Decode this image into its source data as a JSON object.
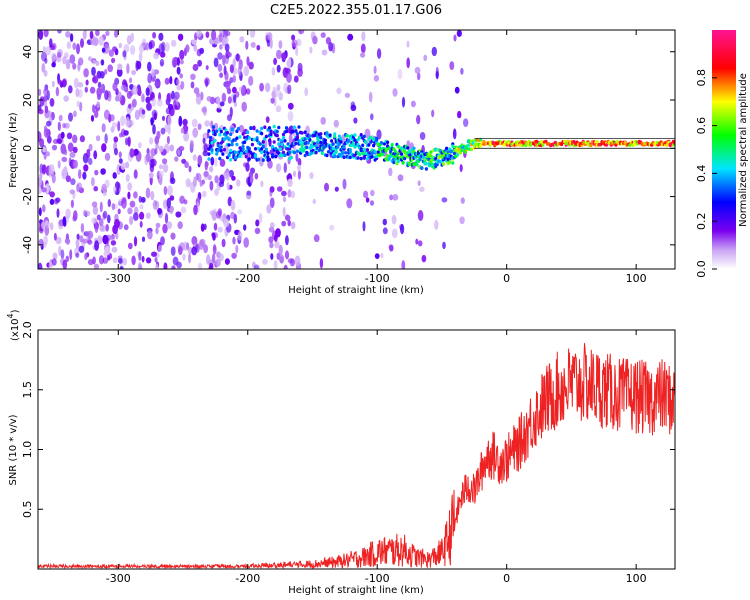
{
  "title": "C2E5.2022.355.01.17.G06",
  "chart_data": [
    {
      "type": "heatmap",
      "xlabel": "Height of straight line (km)",
      "ylabel": "Frequency (Hz)",
      "xlim": [
        -362,
        130
      ],
      "ylim": [
        -50,
        49
      ],
      "xticks": [
        -300,
        -200,
        -100,
        0,
        100
      ],
      "yticks": [
        -40,
        -20,
        0,
        20,
        40
      ],
      "colorbar": {
        "label": "Normalized spectral amplitude",
        "range": [
          0.0,
          1.0
        ],
        "ticks": [
          "0.0",
          "0.2",
          "0.4",
          "0.6",
          "0.8"
        ],
        "colormap": "rainbow",
        "colors": [
          "#ffffff",
          "#7a00f0",
          "#0000ff",
          "#00e5ff",
          "#00ff00",
          "#ffff00",
          "#ff0000",
          "#ff1493"
        ]
      },
      "ridge": {
        "description_points_x": [
          -200,
          -150,
          -120,
          -100,
          -80,
          -60,
          -45,
          -30,
          -20,
          0,
          50,
          100,
          130
        ],
        "description_points_y": [
          2,
          2,
          1,
          0,
          -3,
          -5,
          -3,
          1,
          2,
          2,
          2,
          2,
          2
        ]
      }
    },
    {
      "type": "line",
      "xlabel": "Height of straight line (km)",
      "ylabel": "SNR (10 * v/v)",
      "scale_label": "(x10",
      "scale_exponent": "4",
      "scale_close": ")",
      "xlim": [
        -362,
        130
      ],
      "ylim": [
        0,
        2.0
      ],
      "xticks": [
        -300,
        -200,
        -100,
        0,
        100
      ],
      "yticks": [
        "0.5",
        "1.0",
        "1.5",
        "2.0"
      ],
      "line_color": "#ee2222",
      "x": [
        -362,
        -300,
        -250,
        -200,
        -180,
        -150,
        -130,
        -110,
        -100,
        -90,
        -80,
        -70,
        -60,
        -50,
        -45,
        -40,
        -35,
        -30,
        -25,
        -20,
        -15,
        -10,
        -5,
        0,
        10,
        20,
        30,
        40,
        50,
        60,
        70,
        80,
        90,
        100,
        110,
        120,
        130
      ],
      "y": [
        0.02,
        0.02,
        0.02,
        0.02,
        0.03,
        0.04,
        0.06,
        0.1,
        0.14,
        0.15,
        0.16,
        0.1,
        0.08,
        0.14,
        0.25,
        0.4,
        0.6,
        0.7,
        0.65,
        0.8,
        0.95,
        0.95,
        0.9,
        0.92,
        1.05,
        1.25,
        1.4,
        1.5,
        1.55,
        1.55,
        1.52,
        1.48,
        1.45,
        1.45,
        1.42,
        1.45,
        1.4
      ]
    }
  ]
}
